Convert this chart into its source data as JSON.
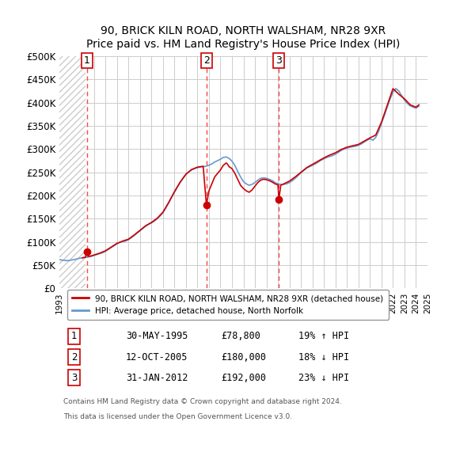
{
  "title1": "90, BRICK KILN ROAD, NORTH WALSHAM, NR28 9XR",
  "title2": "Price paid vs. HM Land Registry's House Price Index (HPI)",
  "ylabel": "",
  "ylim": [
    0,
    500000
  ],
  "yticks": [
    0,
    50000,
    100000,
    150000,
    200000,
    250000,
    300000,
    350000,
    400000,
    450000,
    500000
  ],
  "ytick_labels": [
    "£0",
    "£50K",
    "£100K",
    "£150K",
    "£200K",
    "£250K",
    "£300K",
    "£350K",
    "£400K",
    "£450K",
    "£500K"
  ],
  "sale_dates_num": [
    1995.41,
    2005.78,
    2012.08
  ],
  "sale_prices": [
    78800,
    180000,
    192000
  ],
  "marker_labels": [
    "1",
    "2",
    "3"
  ],
  "legend_line1": "90, BRICK KILN ROAD, NORTH WALSHAM, NR28 9XR (detached house)",
  "legend_line2": "HPI: Average price, detached house, North Norfolk",
  "table_data": [
    [
      "1",
      "30-MAY-1995",
      "£78,800",
      "19% ↑ HPI"
    ],
    [
      "2",
      "12-OCT-2005",
      "£180,000",
      "18% ↓ HPI"
    ],
    [
      "3",
      "31-JAN-2012",
      "£192,000",
      "23% ↓ HPI"
    ]
  ],
  "footnote1": "Contains HM Land Registry data © Crown copyright and database right 2024.",
  "footnote2": "This data is licensed under the Open Government Licence v3.0.",
  "red_line_color": "#cc0000",
  "blue_line_color": "#6699cc",
  "dashed_line_color": "#ff4444",
  "background_hatch_color": "#dddddd",
  "grid_color": "#cccccc",
  "hpi_data": {
    "years": [
      1993.0,
      1993.25,
      1993.5,
      1993.75,
      1994.0,
      1994.25,
      1994.5,
      1994.75,
      1995.0,
      1995.25,
      1995.5,
      1995.75,
      1996.0,
      1996.25,
      1996.5,
      1996.75,
      1997.0,
      1997.25,
      1997.5,
      1997.75,
      1998.0,
      1998.25,
      1998.5,
      1998.75,
      1999.0,
      1999.25,
      1999.5,
      1999.75,
      2000.0,
      2000.25,
      2000.5,
      2000.75,
      2001.0,
      2001.25,
      2001.5,
      2001.75,
      2002.0,
      2002.25,
      2002.5,
      2002.75,
      2003.0,
      2003.25,
      2003.5,
      2003.75,
      2004.0,
      2004.25,
      2004.5,
      2004.75,
      2005.0,
      2005.25,
      2005.5,
      2005.75,
      2006.0,
      2006.25,
      2006.5,
      2006.75,
      2007.0,
      2007.25,
      2007.5,
      2007.75,
      2008.0,
      2008.25,
      2008.5,
      2008.75,
      2009.0,
      2009.25,
      2009.5,
      2009.75,
      2010.0,
      2010.25,
      2010.5,
      2010.75,
      2011.0,
      2011.25,
      2011.5,
      2011.75,
      2012.0,
      2012.25,
      2012.5,
      2012.75,
      2013.0,
      2013.25,
      2013.5,
      2013.75,
      2014.0,
      2014.25,
      2014.5,
      2014.75,
      2015.0,
      2015.25,
      2015.5,
      2015.75,
      2016.0,
      2016.25,
      2016.5,
      2016.75,
      2017.0,
      2017.25,
      2017.5,
      2017.75,
      2018.0,
      2018.25,
      2018.5,
      2018.75,
      2019.0,
      2019.25,
      2019.5,
      2019.75,
      2020.0,
      2020.25,
      2020.5,
      2020.75,
      2021.0,
      2021.25,
      2021.5,
      2021.75,
      2022.0,
      2022.25,
      2022.5,
      2022.75,
      2023.0,
      2023.25,
      2023.5,
      2023.75,
      2024.0,
      2024.25
    ],
    "values": [
      62000,
      61000,
      60500,
      60000,
      61000,
      62000,
      63500,
      65000,
      66000,
      67000,
      68000,
      69000,
      71000,
      73000,
      75000,
      77000,
      80000,
      84000,
      88000,
      92000,
      96000,
      99000,
      101000,
      102000,
      105000,
      109000,
      114000,
      119000,
      124000,
      129000,
      134000,
      138000,
      141000,
      145000,
      150000,
      156000,
      163000,
      173000,
      184000,
      196000,
      207000,
      218000,
      228000,
      237000,
      245000,
      251000,
      255000,
      258000,
      260000,
      261000,
      262000,
      263000,
      265000,
      268000,
      272000,
      275000,
      278000,
      282000,
      283000,
      280000,
      274000,
      265000,
      252000,
      240000,
      230000,
      225000,
      222000,
      224000,
      228000,
      233000,
      237000,
      238000,
      237000,
      235000,
      232000,
      228000,
      225000,
      224000,
      224000,
      225000,
      228000,
      232000,
      237000,
      243000,
      249000,
      254000,
      259000,
      262000,
      265000,
      268000,
      272000,
      276000,
      279000,
      282000,
      284000,
      286000,
      289000,
      293000,
      297000,
      300000,
      302000,
      304000,
      305000,
      306000,
      308000,
      311000,
      315000,
      319000,
      322000,
      319000,
      325000,
      338000,
      355000,
      372000,
      390000,
      408000,
      422000,
      430000,
      425000,
      415000,
      405000,
      398000,
      393000,
      390000,
      388000,
      392000
    ]
  },
  "price_line_data": {
    "years": [
      1995.0,
      1995.25,
      1995.41,
      1995.5,
      1995.75,
      1996.0,
      1996.5,
      1997.0,
      1997.5,
      1998.0,
      1998.5,
      1999.0,
      1999.5,
      2000.0,
      2000.5,
      2001.0,
      2001.5,
      2002.0,
      2002.5,
      2003.0,
      2003.5,
      2004.0,
      2004.5,
      2005.0,
      2005.5,
      2005.78,
      2006.0,
      2006.5,
      2007.0,
      2007.25,
      2007.5,
      2007.6,
      2007.75,
      2008.0,
      2008.25,
      2008.5,
      2008.75,
      2009.0,
      2009.25,
      2009.5,
      2009.75,
      2010.0,
      2010.25,
      2010.5,
      2010.75,
      2011.0,
      2011.25,
      2011.5,
      2011.75,
      2012.0,
      2012.08,
      2012.25,
      2012.5,
      2012.75,
      2013.0,
      2013.5,
      2014.0,
      2014.5,
      2015.0,
      2015.5,
      2016.0,
      2016.5,
      2017.0,
      2017.5,
      2018.0,
      2018.5,
      2019.0,
      2019.5,
      2020.0,
      2020.5,
      2021.0,
      2021.5,
      2022.0,
      2022.5,
      2023.0,
      2023.5,
      2024.0,
      2024.25
    ],
    "values": [
      66000,
      67000,
      78800,
      69000,
      70000,
      72000,
      76000,
      81000,
      89000,
      97000,
      102000,
      106000,
      115000,
      125000,
      135000,
      142000,
      151000,
      164000,
      185000,
      208000,
      229000,
      246000,
      256000,
      261000,
      263000,
      180000,
      210000,
      240000,
      255000,
      265000,
      270000,
      268000,
      262000,
      258000,
      248000,
      235000,
      222000,
      215000,
      210000,
      207000,
      212000,
      220000,
      228000,
      233000,
      235000,
      234000,
      232000,
      229000,
      225000,
      223000,
      192000,
      222000,
      225000,
      228000,
      231000,
      240000,
      250000,
      260000,
      267000,
      274000,
      281000,
      287000,
      292000,
      299000,
      304000,
      307000,
      310000,
      317000,
      324000,
      330000,
      358000,
      394000,
      430000,
      418000,
      408000,
      395000,
      390000,
      395000
    ]
  }
}
